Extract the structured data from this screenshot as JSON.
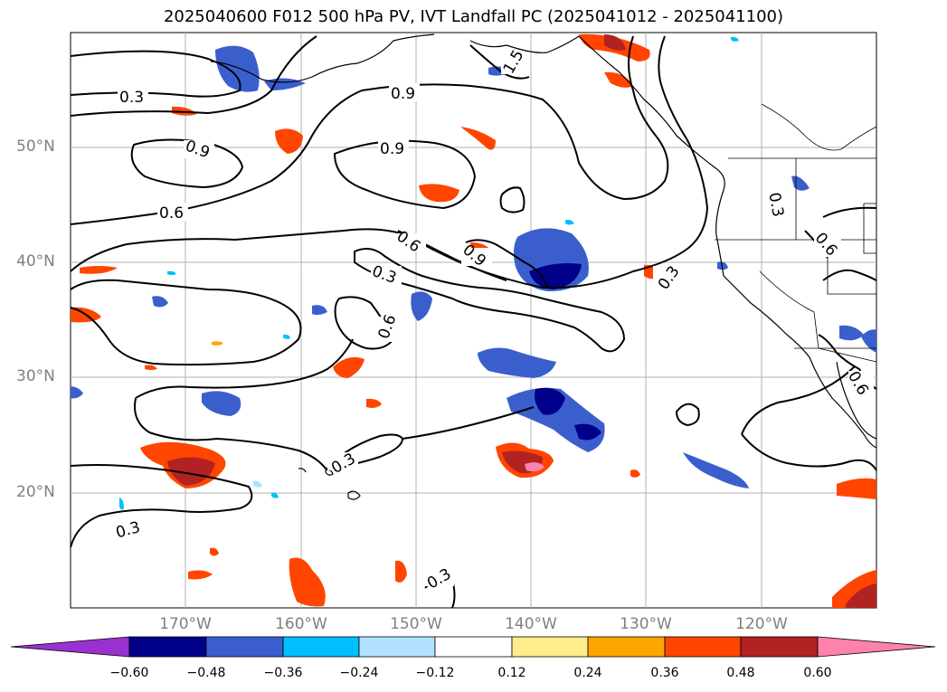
{
  "title": "2025040600 F012 500 hPa PV, IVT Landfall PC (2025041012 - 2025041100)",
  "lat_labels": [
    "50°N",
    "40°N",
    "30°N",
    "20°N"
  ],
  "lon_labels": [
    "170°W",
    "160°W",
    "150°W",
    "140°W",
    "130°W",
    "120°W"
  ],
  "contour_labels": [
    "0.3",
    "0.9",
    "0.9",
    "0.9",
    "0.6",
    "0.6",
    "0.9",
    "0.3",
    "0.6",
    "0.3",
    "0.3",
    "0.3",
    "0.3",
    "0.3",
    "0.6",
    "0.6",
    "1.5"
  ],
  "colorbar": {
    "ticks": [
      "−0.60",
      "−0.48",
      "−0.36",
      "−0.24",
      "−0.12",
      "0.12",
      "0.24",
      "0.36",
      "0.48",
      "0.60"
    ],
    "colors": [
      "#9b30d0",
      "#00008b",
      "#3a5fcd",
      "#00bfff",
      "#b0e2ff",
      "#ffffff",
      "#ffec8b",
      "#ffa500",
      "#ff4500",
      "#b22222",
      "#ff82ab"
    ]
  }
}
